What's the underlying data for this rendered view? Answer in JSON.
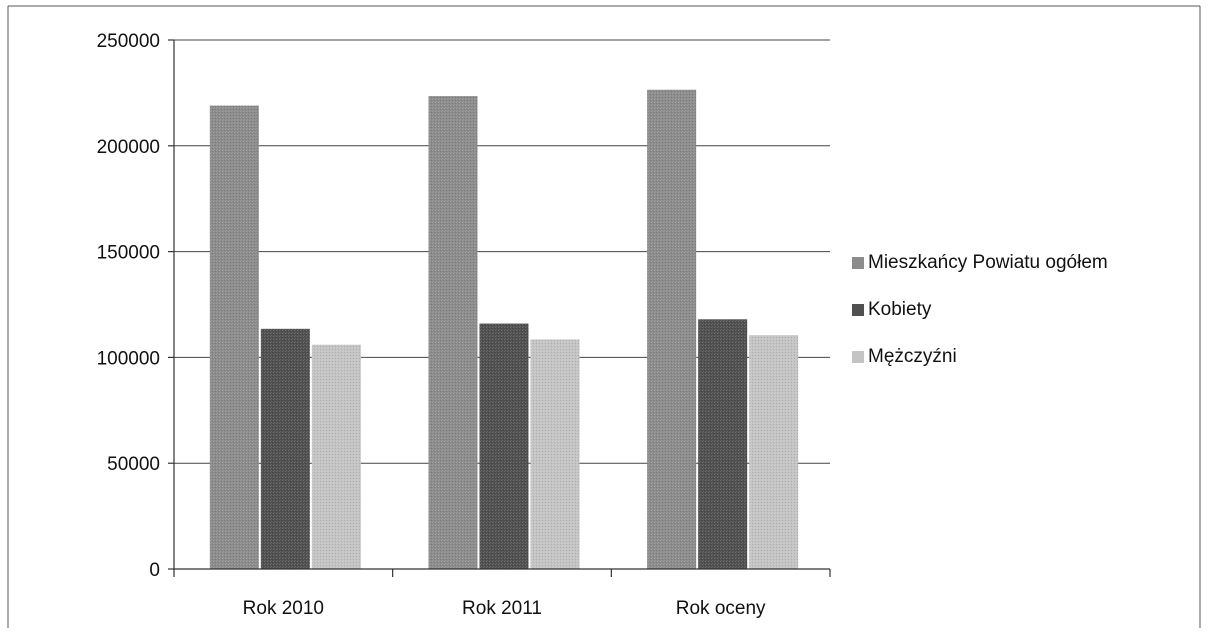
{
  "chart_data": {
    "type": "bar",
    "categories": [
      "Rok 2010",
      "Rok 2011",
      "Rok oceny"
    ],
    "series": [
      {
        "name": "Mieszkańcy Powiatu ogółem",
        "values": [
          219000,
          223500,
          226500
        ],
        "color": "#8c8c8c"
      },
      {
        "name": "Kobiety",
        "values": [
          113500,
          116000,
          118000
        ],
        "color": "#505050"
      },
      {
        "name": "Mężczyźni",
        "values": [
          106000,
          108500,
          110500
        ],
        "color": "#c4c4c4"
      }
    ],
    "title": "",
    "xlabel": "",
    "ylabel": "",
    "ylim": [
      0,
      250000
    ],
    "yticks": [
      0,
      50000,
      100000,
      150000,
      200000,
      250000
    ],
    "grid": true,
    "legend_position": "right"
  }
}
